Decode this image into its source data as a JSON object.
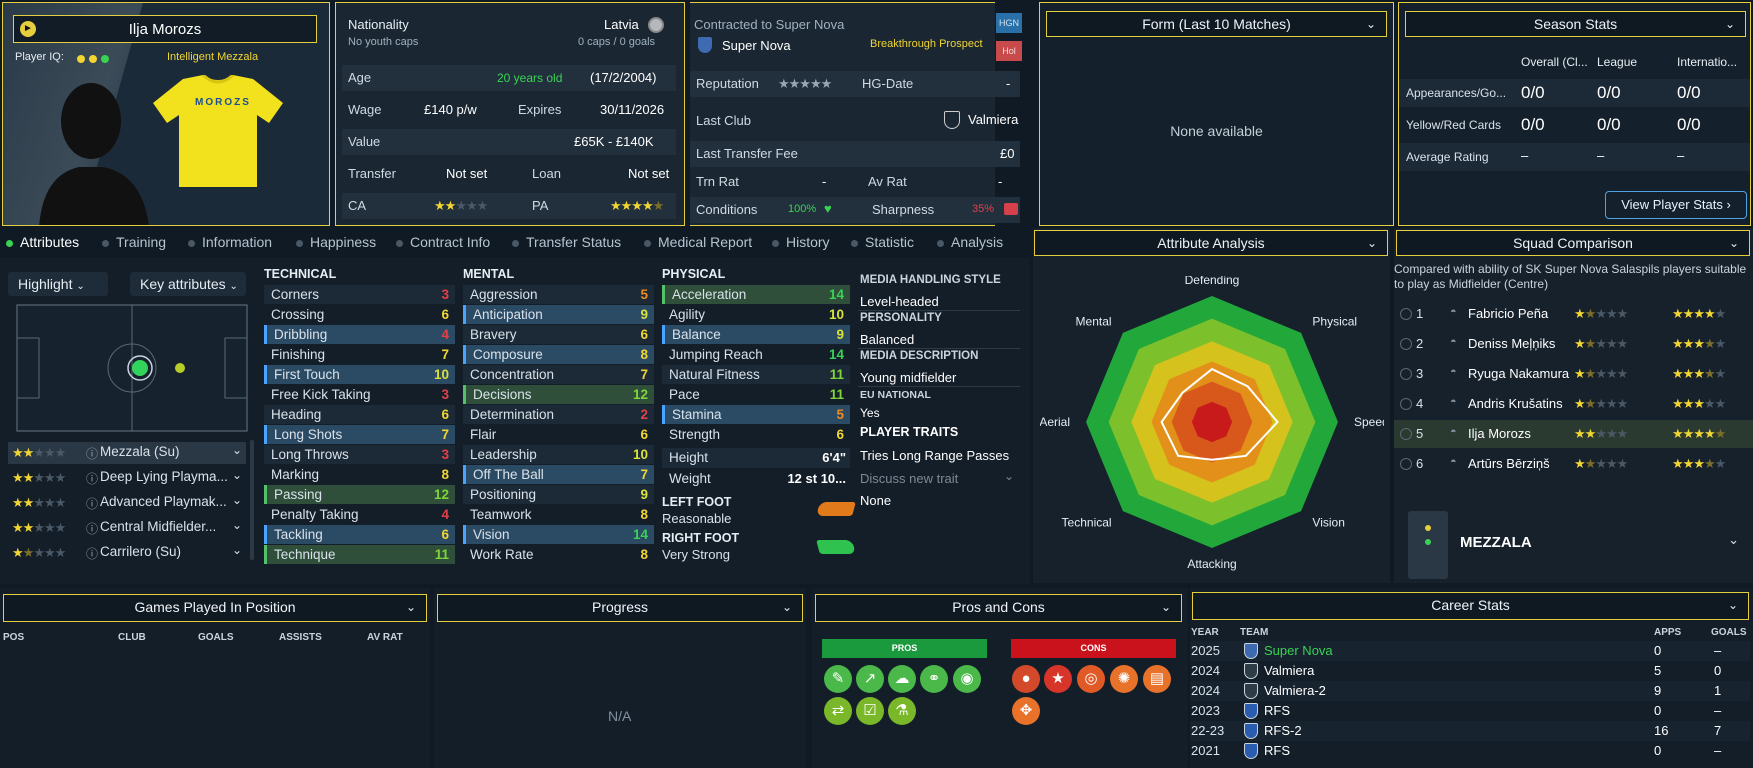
{
  "profile": {
    "name": "Ilja Morozs",
    "player_iq_label": "Player IQ:",
    "iq_tag": "Intelligent Mezzala",
    "shirt_name": "MOROZS"
  },
  "info": {
    "nationality_label": "Nationality",
    "nationality": "Latvia",
    "youth_caps": "No youth caps",
    "caps": "0 caps / 0 goals",
    "age_label": "Age",
    "age": "20 years old",
    "dob": "(17/2/2004)",
    "wage_label": "Wage",
    "wage": "£140 p/w",
    "expires_label": "Expires",
    "expires": "30/11/2026",
    "value_label": "Value",
    "value": "£65K - £140K",
    "transfer_label": "Transfer",
    "transfer": "Not set",
    "loan_label": "Loan",
    "loan": "Not set",
    "ca_label": "CA",
    "pa_label": "PA"
  },
  "contract": {
    "contracted_label": "Contracted to Super Nova",
    "club": "Super Nova",
    "status": "Breakthrough Prospect",
    "badge1": "HGN",
    "badge2": "Hol",
    "reputation_label": "Reputation",
    "hg_label": "HG-Date",
    "hg_value": "-",
    "last_club_label": "Last Club",
    "last_club": "Valmiera",
    "last_fee_label": "Last Transfer Fee",
    "last_fee": "£0",
    "trn_label": "Trn Rat",
    "trn_value": "-",
    "av_label": "Av Rat",
    "av_value": "-",
    "conditions_label": "Conditions",
    "conditions": "100%",
    "sharpness_label": "Sharpness",
    "sharpness": "35%"
  },
  "form": {
    "title": "Form (Last 10 Matches)",
    "empty": "None available"
  },
  "season": {
    "title": "Season Stats",
    "cols": [
      "Overall (Cl...",
      "League",
      "Internatio..."
    ],
    "rows": [
      {
        "label": "Appearances/Go...",
        "vals": [
          "0/0",
          "0/0",
          "0/0"
        ]
      },
      {
        "label": "Yellow/Red Cards",
        "vals": [
          "0/0",
          "0/0",
          "0/0"
        ]
      },
      {
        "label": "Average Rating",
        "vals": [
          "–",
          "–",
          "–"
        ]
      }
    ],
    "button": "View Player Stats"
  },
  "tabs": [
    "Attributes",
    "Training",
    "Information",
    "Happiness",
    "Contract Info",
    "Transfer Status",
    "Medical Report",
    "History",
    "Statistic",
    "Analysis"
  ],
  "left": {
    "highlight": "Highlight",
    "key_attrs": "Key attributes",
    "roles": [
      "Mezzala (Su)",
      "Deep Lying Playma...",
      "Advanced Playmak...",
      "Central Midfielder...",
      "Carrilero (Su)"
    ]
  },
  "technical": {
    "title": "TECHNICAL",
    "items": [
      {
        "name": "Corners",
        "value": "3"
      },
      {
        "name": "Crossing",
        "value": "6"
      },
      {
        "name": "Dribbling",
        "value": "4"
      },
      {
        "name": "Finishing",
        "value": "7"
      },
      {
        "name": "First Touch",
        "value": "10"
      },
      {
        "name": "Free Kick Taking",
        "value": "3"
      },
      {
        "name": "Heading",
        "value": "6"
      },
      {
        "name": "Long Shots",
        "value": "7"
      },
      {
        "name": "Long Throws",
        "value": "3"
      },
      {
        "name": "Marking",
        "value": "8"
      },
      {
        "name": "Passing",
        "value": "12"
      },
      {
        "name": "Penalty Taking",
        "value": "4"
      },
      {
        "name": "Tackling",
        "value": "6"
      },
      {
        "name": "Technique",
        "value": "11"
      }
    ]
  },
  "mental": {
    "title": "MENTAL",
    "items": [
      {
        "name": "Aggression",
        "value": "5"
      },
      {
        "name": "Anticipation",
        "value": "9"
      },
      {
        "name": "Bravery",
        "value": "6"
      },
      {
        "name": "Composure",
        "value": "8"
      },
      {
        "name": "Concentration",
        "value": "7"
      },
      {
        "name": "Decisions",
        "value": "12"
      },
      {
        "name": "Determination",
        "value": "2"
      },
      {
        "name": "Flair",
        "value": "6"
      },
      {
        "name": "Leadership",
        "value": "10"
      },
      {
        "name": "Off The Ball",
        "value": "7"
      },
      {
        "name": "Positioning",
        "value": "9"
      },
      {
        "name": "Teamwork",
        "value": "8"
      },
      {
        "name": "Vision",
        "value": "14"
      },
      {
        "name": "Work Rate",
        "value": "8"
      }
    ]
  },
  "physical": {
    "title": "PHYSICAL",
    "items": [
      {
        "name": "Acceleration",
        "value": "14"
      },
      {
        "name": "Agility",
        "value": "10"
      },
      {
        "name": "Balance",
        "value": "9"
      },
      {
        "name": "Jumping Reach",
        "value": "14"
      },
      {
        "name": "Natural Fitness",
        "value": "11"
      },
      {
        "name": "Pace",
        "value": "11"
      },
      {
        "name": "Stamina",
        "value": "5"
      },
      {
        "name": "Strength",
        "value": "6"
      }
    ],
    "height_label": "Height",
    "height": "6'4\"",
    "weight_label": "Weight",
    "weight": "12 st 10...",
    "left_foot_label": "LEFT FOOT",
    "left_foot": "Reasonable",
    "right_foot_label": "RIGHT FOOT",
    "right_foot": "Very Strong"
  },
  "media": {
    "style_label": "MEDIA HANDLING STYLE",
    "style": "Level-headed",
    "personality_label": "PERSONALITY",
    "personality": "Balanced",
    "desc_label": "MEDIA DESCRIPTION",
    "desc": "Young midfielder",
    "eu_label": "EU NATIONAL",
    "eu": "Yes",
    "traits_label": "PLAYER TRAITS",
    "trait": "Tries Long Range Passes",
    "discuss": "Discuss new trait",
    "none": "None"
  },
  "analysis": {
    "title": "Attribute Analysis",
    "axes": [
      "Defending",
      "Physical",
      "Speed",
      "Vision",
      "Attacking",
      "Technical",
      "Aerial",
      "Mental"
    ],
    "values": [
      0.42,
      0.4,
      0.52,
      0.38,
      0.3,
      0.38,
      0.4,
      0.33
    ]
  },
  "squad": {
    "title": "Squad Comparison",
    "desc": "Compared with ability of SK Super Nova Salaspils players suitable to play as Midfielder (Centre)",
    "players": [
      {
        "rank": "1",
        "name": "Fabricio Peña",
        "ca": 1.5,
        "pa": 4
      },
      {
        "rank": "2",
        "name": "Deniss Meļņiks",
        "ca": 1.5,
        "pa": 3.5
      },
      {
        "rank": "3",
        "name": "Ryuga Nakamura",
        "ca": 1.5,
        "pa": 3.5
      },
      {
        "rank": "4",
        "name": "Andris Krušatins",
        "ca": 1.5,
        "pa": 3
      },
      {
        "rank": "5",
        "name": "Ilja Morozs",
        "ca": 2,
        "pa": 4.5
      },
      {
        "rank": "6",
        "name": "Artūrs Bērziņš",
        "ca": 1.5,
        "pa": 3.5
      }
    ],
    "role": "MEZZALA"
  },
  "games": {
    "title": "Games Played In Position",
    "cols": [
      "POS",
      "CLUB",
      "GOALS",
      "ASSISTS",
      "AV RAT"
    ]
  },
  "progress": {
    "title": "Progress",
    "empty": "N/A"
  },
  "proscons": {
    "title": "Pros and Cons",
    "pros": "PROS",
    "cons": "CONS"
  },
  "career": {
    "title": "Career Stats",
    "cols": [
      "YEAR",
      "TEAM",
      "APPS",
      "GOALS"
    ],
    "rows": [
      {
        "year": "2025",
        "team": "Super Nova",
        "apps": "0",
        "goals": "–"
      },
      {
        "year": "2024",
        "team": "Valmiera",
        "apps": "5",
        "goals": "0"
      },
      {
        "year": "2024",
        "team": "Valmiera-2",
        "apps": "9",
        "goals": "1"
      },
      {
        "year": "2023",
        "team": "RFS",
        "apps": "0",
        "goals": "–"
      },
      {
        "year": "22-23",
        "team": "RFS-2",
        "apps": "16",
        "goals": "7"
      },
      {
        "year": "2021",
        "team": "RFS",
        "apps": "0",
        "goals": "–"
      }
    ]
  },
  "colors": {
    "accent": "#e5cf3e",
    "green": "#39d353",
    "red": "#e0404a"
  }
}
